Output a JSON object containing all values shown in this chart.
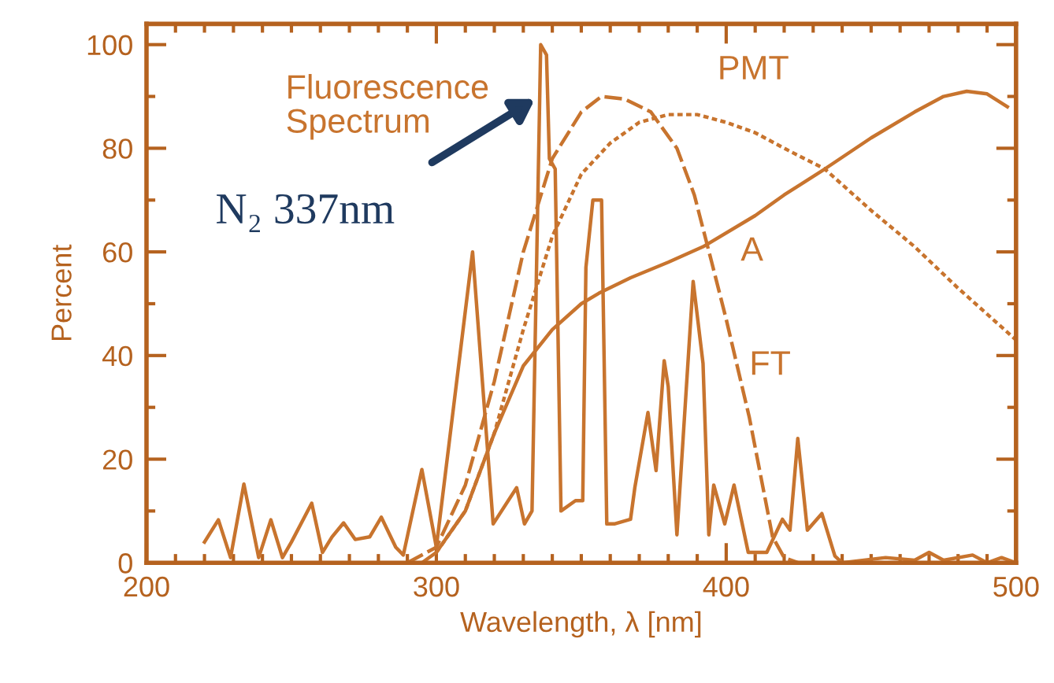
{
  "chart_data": {
    "type": "line",
    "xlabel": "Wavelength, λ [nm]",
    "ylabel": "Percent",
    "xlim": [
      200,
      500
    ],
    "ylim": [
      0,
      104
    ],
    "xticks": [
      200,
      {
        "value": 210,
        "label": null
      },
      {
        "value": 220,
        "label": null
      },
      {
        "value": 230,
        "label": null
      },
      {
        "value": 240,
        "label": null
      },
      {
        "value": 250,
        "label": null
      },
      {
        "value": 260,
        "label": null
      },
      {
        "value": 270,
        "label": null
      },
      {
        "value": 280,
        "label": null
      },
      {
        "value": 290,
        "label": null
      },
      300,
      {
        "value": 310,
        "label": null
      },
      {
        "value": 320,
        "label": null
      },
      {
        "value": 330,
        "label": null
      },
      {
        "value": 340,
        "label": null
      },
      {
        "value": 350,
        "label": null
      },
      {
        "value": 360,
        "label": null
      },
      {
        "value": 370,
        "label": null
      },
      {
        "value": 380,
        "label": null
      },
      {
        "value": 390,
        "label": null
      },
      400,
      {
        "value": 410,
        "label": null
      },
      {
        "value": 420,
        "label": null
      },
      {
        "value": 430,
        "label": null
      },
      {
        "value": 440,
        "label": null
      },
      {
        "value": 450,
        "label": null
      },
      {
        "value": 460,
        "label": null
      },
      {
        "value": 470,
        "label": null
      },
      {
        "value": 480,
        "label": null
      },
      {
        "value": 490,
        "label": null
      },
      500
    ],
    "yticks": [
      0,
      {
        "value": 10,
        "label": null
      },
      20,
      {
        "value": 30,
        "label": null
      },
      40,
      {
        "value": 50,
        "label": null
      },
      60,
      {
        "value": 70,
        "label": null
      },
      80,
      {
        "value": 90,
        "label": null
      },
      100
    ],
    "grid": false,
    "legend": false,
    "marker": "none",
    "series": [
      {
        "name": "Fluorescence\nSpectrum",
        "color": "#c8742e",
        "line_style": "solid",
        "x": [
          220,
          224.8,
          229,
          233.6,
          238.7,
          242.9,
          246.9,
          250,
          257,
          260.7,
          264,
          268,
          272,
          277,
          281,
          286,
          288.6,
          295,
          300,
          312.5,
          319.6,
          327.7,
          330.4,
          333,
          336,
          338,
          339,
          341,
          343,
          348,
          350.5,
          351.6,
          354,
          357,
          358.8,
          361.4,
          367,
          368.5,
          373,
          375.8,
          378.6,
          380,
          383,
          388.6,
          392,
          394,
          395.7,
          399.5,
          402.7,
          407.6,
          414,
          419.4,
          422,
          424.7,
          428,
          433,
          437.5,
          440,
          455,
          465,
          470,
          475,
          485,
          490,
          495,
          500
        ],
        "values": [
          4,
          8.3,
          1,
          15.2,
          1,
          8.3,
          1,
          4,
          11.5,
          2,
          5,
          7.7,
          4.5,
          5,
          8.8,
          3,
          1.5,
          18,
          3,
          60,
          7.5,
          14.5,
          7.5,
          10,
          100,
          98,
          78,
          76,
          10,
          12,
          12,
          57,
          70,
          70,
          7.5,
          7.5,
          8.4,
          14.6,
          29,
          17.8,
          39,
          34,
          5.4,
          54.3,
          38.5,
          5.4,
          15,
          7.5,
          15,
          2,
          2,
          8.4,
          6.3,
          24,
          6.3,
          9.5,
          1.3,
          0,
          1,
          0.5,
          2,
          0.5,
          1.5,
          0,
          1,
          0
        ]
      },
      {
        "name": "PMT",
        "color": "#c8742e",
        "line_style": "dotted",
        "x": [
          300,
          310,
          320,
          330,
          340,
          350,
          360,
          370,
          380,
          390,
          400,
          410,
          420,
          434,
          450,
          465,
          480,
          490,
          500
        ],
        "values": [
          2,
          10,
          25,
          45,
          63,
          75,
          81,
          85,
          86.5,
          86.5,
          85,
          83,
          80,
          76,
          68,
          61,
          53,
          48,
          43
        ]
      },
      {
        "name": "A",
        "color": "#c8742e",
        "line_style": "solid",
        "x": [
          295,
          300,
          310,
          320,
          330,
          340,
          350,
          356,
          367,
          380,
          392,
          410,
          420,
          434,
          450,
          465,
          475,
          483,
          490,
          497
        ],
        "values": [
          0,
          2,
          10,
          25,
          38,
          45,
          50,
          52,
          55,
          58,
          61,
          67,
          71,
          76,
          82,
          87,
          90,
          91,
          90.5,
          88
        ]
      },
      {
        "name": "FT",
        "color": "#c8742e",
        "line_style": "dashed",
        "x": [
          290,
          300,
          310,
          320,
          330,
          340,
          350,
          357,
          365,
          374,
          383,
          389,
          395,
          400,
          408,
          416,
          420,
          425
        ],
        "values": [
          0,
          3,
          15,
          35,
          60,
          78,
          87,
          90,
          89.5,
          87,
          80,
          71,
          58,
          47,
          28,
          5,
          1,
          0
        ]
      }
    ],
    "annotations": [
      {
        "text": "N₂ 337nm",
        "x": 334,
        "y": 89.5
      }
    ]
  }
}
